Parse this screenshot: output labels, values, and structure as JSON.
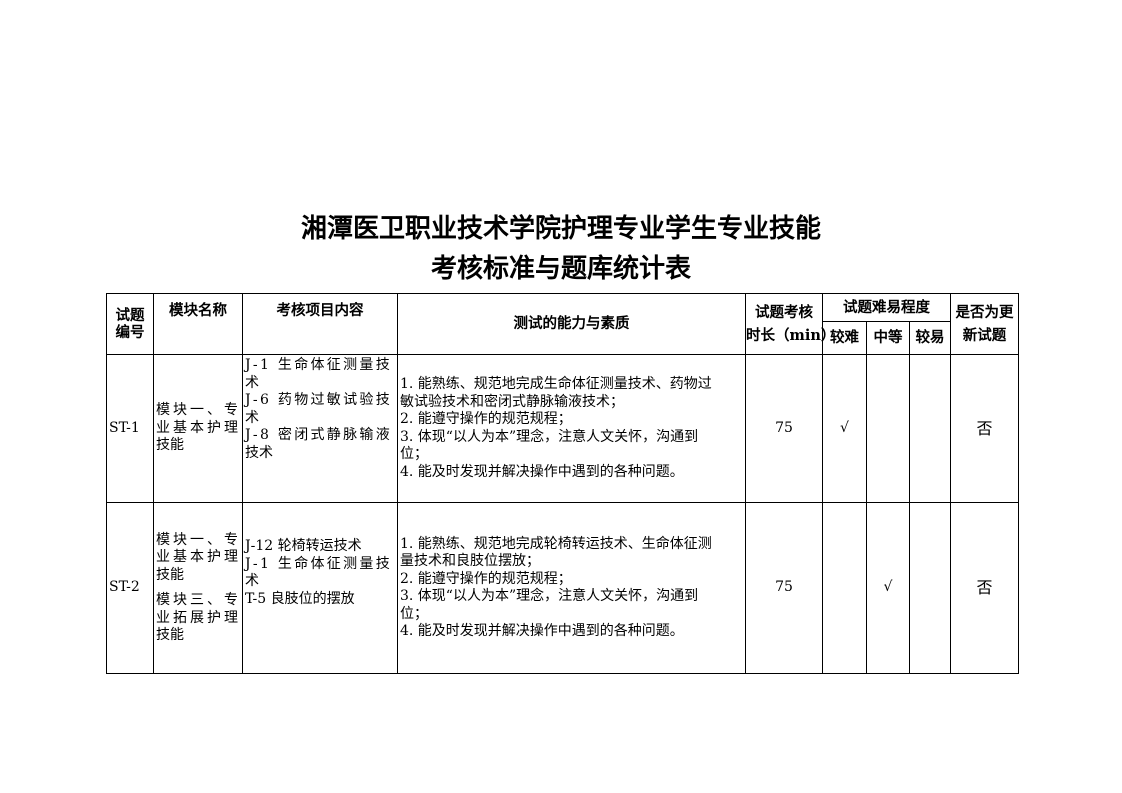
{
  "title": {
    "line1": "湘潭医卫职业技术学院护理专业学生专业技能",
    "line2": "考核标准与题库统计表"
  },
  "headers": {
    "id": [
      "试题",
      "编号"
    ],
    "module": "模块名称",
    "content": "考核项目内容",
    "abilities": "测试的能力与素质",
    "duration": [
      "试题考核",
      "时长（min）"
    ],
    "difficulty": "试题难易程度",
    "hard": "较难",
    "medium": "中等",
    "easy": "较易",
    "updated": [
      "是否为更",
      "新试题"
    ]
  },
  "rows": [
    {
      "id": "ST-1",
      "module": [
        "模块一、专",
        "业基本护理",
        "技能"
      ],
      "content": [
        "J-1 生命体征测量技",
        "术",
        "J-6 药物过敏试验技",
        "术",
        "J-8 密闭式静脉输液",
        "技术"
      ],
      "abilities": [
        "1. 能熟练、规范地完成生命体征测量技术、药物过",
        "敏试验技术和密闭式静脉输液技术；",
        "2. 能遵守操作的规范规程；",
        "3. 体现“以人为本”理念，注意人文关怀，沟通到",
        "位；",
        "4. 能及时发现并解决操作中遇到的各种问题。"
      ],
      "duration": "75",
      "hard": "√",
      "medium": "",
      "easy": "",
      "updated": "否"
    },
    {
      "id": "ST-2",
      "module": [
        "模块一、专",
        "业基本护理",
        "技能",
        "模块三、专",
        "业拓展护理",
        "技能"
      ],
      "content": [
        "J-12 轮椅转运技术",
        "J-1 生命体征测量技",
        "术",
        "T-5 良肢位的摆放"
      ],
      "abilities": [
        "1. 能熟练、规范地完成轮椅转运技术、生命体征测",
        "量技术和良肢位摆放；",
        "2. 能遵守操作的规范规程；",
        "3. 体现“以人为本”理念，注意人文关怀，沟通到",
        "位；",
        "4. 能及时发现并解决操作中遇到的各种问题。"
      ],
      "duration": "75",
      "hard": "",
      "medium": "√",
      "easy": "",
      "updated": "否"
    }
  ]
}
